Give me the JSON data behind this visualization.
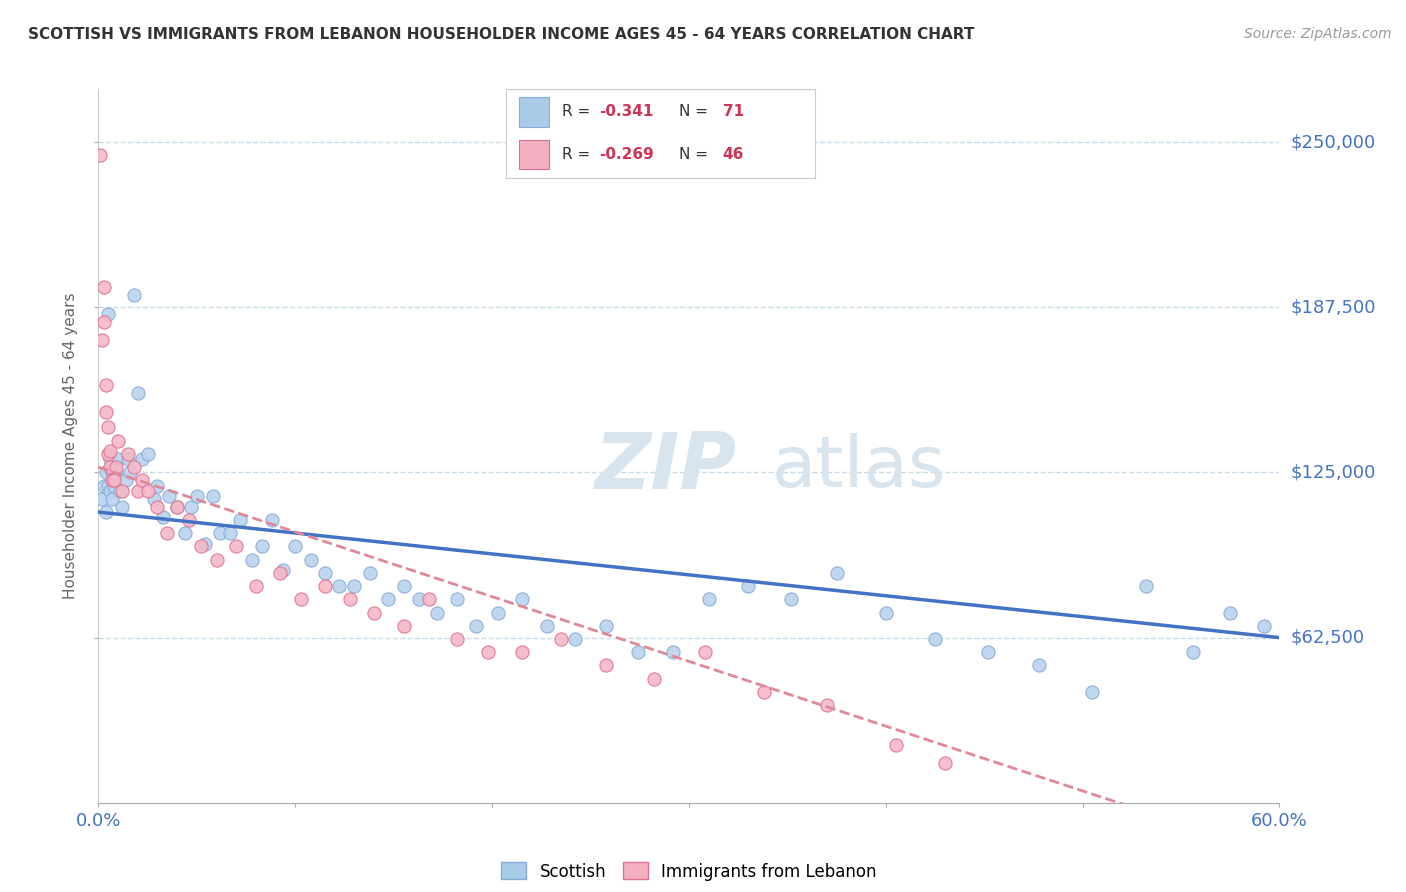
{
  "title": "SCOTTISH VS IMMIGRANTS FROM LEBANON HOUSEHOLDER INCOME AGES 45 - 64 YEARS CORRELATION CHART",
  "source": "Source: ZipAtlas.com",
  "ylabel": "Householder Income Ages 45 - 64 years",
  "xlim": [
    0,
    0.6
  ],
  "ylim": [
    0,
    270000
  ],
  "yticks": [
    62500,
    125000,
    187500,
    250000
  ],
  "ytick_labels": [
    "$62,500",
    "$125,000",
    "$187,500",
    "$250,000"
  ],
  "xticks": [
    0.0,
    0.1,
    0.2,
    0.3,
    0.4,
    0.5,
    0.6
  ],
  "xtick_labels_show": [
    "0.0%",
    "",
    "",
    "",
    "",
    "",
    "60.0%"
  ],
  "legend_entries": [
    {
      "label": "Scottish",
      "color": "#a8cce8",
      "R": -0.341,
      "N": 71
    },
    {
      "label": "Immigrants from Lebanon",
      "color": "#f4b0c0",
      "R": -0.269,
      "N": 46
    }
  ],
  "scottish_x": [
    0.002,
    0.003,
    0.004,
    0.004,
    0.005,
    0.005,
    0.006,
    0.006,
    0.007,
    0.007,
    0.008,
    0.009,
    0.01,
    0.011,
    0.012,
    0.014,
    0.015,
    0.016,
    0.018,
    0.02,
    0.022,
    0.025,
    0.028,
    0.03,
    0.033,
    0.036,
    0.04,
    0.044,
    0.047,
    0.05,
    0.054,
    0.058,
    0.062,
    0.067,
    0.072,
    0.078,
    0.083,
    0.088,
    0.094,
    0.1,
    0.108,
    0.115,
    0.122,
    0.13,
    0.138,
    0.147,
    0.155,
    0.163,
    0.172,
    0.182,
    0.192,
    0.203,
    0.215,
    0.228,
    0.242,
    0.258,
    0.274,
    0.292,
    0.31,
    0.33,
    0.352,
    0.375,
    0.4,
    0.425,
    0.452,
    0.478,
    0.505,
    0.532,
    0.556,
    0.575,
    0.592
  ],
  "scottish_y": [
    115000,
    120000,
    125000,
    110000,
    185000,
    120000,
    130000,
    118000,
    125000,
    115000,
    120000,
    125000,
    130000,
    118000,
    112000,
    122000,
    130000,
    125000,
    192000,
    155000,
    130000,
    132000,
    115000,
    120000,
    108000,
    116000,
    112000,
    102000,
    112000,
    116000,
    98000,
    116000,
    102000,
    102000,
    107000,
    92000,
    97000,
    107000,
    88000,
    97000,
    92000,
    87000,
    82000,
    82000,
    87000,
    77000,
    82000,
    77000,
    72000,
    77000,
    67000,
    72000,
    77000,
    67000,
    62000,
    67000,
    57000,
    57000,
    77000,
    82000,
    77000,
    87000,
    72000,
    62000,
    57000,
    52000,
    42000,
    82000,
    57000,
    72000,
    67000
  ],
  "lebanon_x": [
    0.001,
    0.002,
    0.003,
    0.003,
    0.004,
    0.004,
    0.005,
    0.005,
    0.006,
    0.006,
    0.007,
    0.008,
    0.009,
    0.01,
    0.012,
    0.015,
    0.018,
    0.02,
    0.022,
    0.025,
    0.03,
    0.035,
    0.04,
    0.046,
    0.052,
    0.06,
    0.07,
    0.08,
    0.092,
    0.103,
    0.115,
    0.128,
    0.14,
    0.155,
    0.168,
    0.182,
    0.198,
    0.215,
    0.235,
    0.258,
    0.282,
    0.308,
    0.338,
    0.37,
    0.405,
    0.43
  ],
  "lebanon_y": [
    245000,
    175000,
    195000,
    182000,
    158000,
    148000,
    142000,
    132000,
    133000,
    127000,
    122000,
    122000,
    127000,
    137000,
    118000,
    132000,
    127000,
    118000,
    122000,
    118000,
    112000,
    102000,
    112000,
    107000,
    97000,
    92000,
    97000,
    82000,
    87000,
    77000,
    82000,
    77000,
    72000,
    67000,
    77000,
    62000,
    57000,
    57000,
    62000,
    52000,
    47000,
    57000,
    42000,
    37000,
    22000,
    15000
  ],
  "scottish_line_color": "#4472c4",
  "lebanon_line_color": "#e08898",
  "scottish_dot_facecolor": "#b8d4ee",
  "scottish_dot_edgecolor": "#88aad8",
  "lebanon_dot_facecolor": "#f4b8c8",
  "lebanon_dot_edgecolor": "#e07090",
  "background_color": "#ffffff",
  "grid_color": "#c8dce8",
  "ytick_color": "#4472c4",
  "xtick_color": "#4472c4",
  "title_color": "#333333",
  "watermark_color": "#d8e4ee",
  "legend_R_color": "#cc3355",
  "legend_N_color": "#cc3355"
}
